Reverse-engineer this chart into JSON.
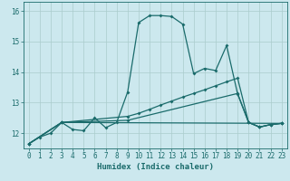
{
  "xlabel": "Humidex (Indice chaleur)",
  "bg_color": "#cce8ee",
  "grid_color": "#aacccc",
  "line_color": "#1a6b6b",
  "xlim": [
    -0.5,
    23.5
  ],
  "ylim": [
    11.5,
    16.3
  ],
  "xticks": [
    0,
    1,
    2,
    3,
    4,
    5,
    6,
    7,
    8,
    9,
    10,
    11,
    12,
    13,
    14,
    15,
    16,
    17,
    18,
    19,
    20,
    21,
    22,
    23
  ],
  "yticks": [
    12,
    13,
    14,
    15,
    16
  ],
  "line1_x": [
    0,
    1,
    2,
    3,
    4,
    5,
    6,
    7,
    8,
    9,
    10,
    11,
    12,
    13,
    14,
    15,
    16,
    17,
    18,
    19,
    20,
    21,
    22,
    23
  ],
  "line1_y": [
    11.65,
    11.87,
    12.0,
    12.35,
    12.12,
    12.08,
    12.5,
    12.18,
    12.35,
    13.35,
    15.62,
    15.85,
    15.85,
    15.82,
    15.57,
    13.95,
    14.12,
    14.05,
    14.87,
    13.28,
    12.35,
    12.2,
    12.28,
    12.32
  ],
  "line2_x": [
    0,
    3,
    9,
    10,
    11,
    12,
    13,
    14,
    15,
    16,
    17,
    18,
    19,
    20,
    21,
    22,
    23
  ],
  "line2_y": [
    11.65,
    12.35,
    12.55,
    12.65,
    12.78,
    12.92,
    13.05,
    13.18,
    13.3,
    13.42,
    13.55,
    13.68,
    13.8,
    12.35,
    12.2,
    12.28,
    12.32
  ],
  "line3_x": [
    0,
    3,
    9,
    19,
    20,
    21,
    22,
    23
  ],
  "line3_y": [
    11.65,
    12.35,
    12.42,
    13.3,
    12.35,
    12.2,
    12.28,
    12.32
  ],
  "line4_x": [
    0,
    3,
    23
  ],
  "line4_y": [
    11.65,
    12.35,
    12.32
  ]
}
